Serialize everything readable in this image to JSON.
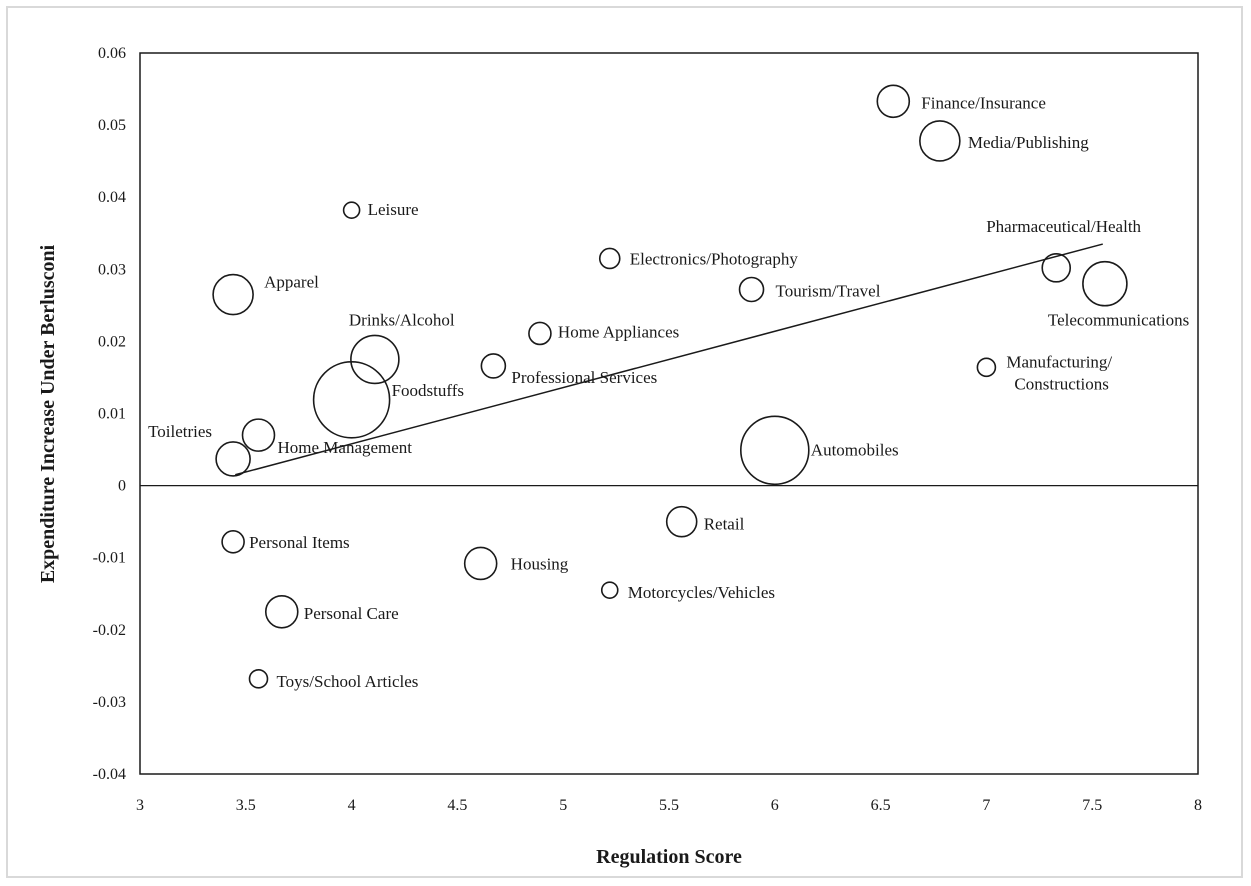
{
  "chart_data": {
    "type": "scatter",
    "subtype": "bubble",
    "title": "",
    "xlabel": "Regulation Score",
    "ylabel": "Expenditure Increase Under Berlusconi",
    "xlim": [
      3,
      8
    ],
    "ylim": [
      -0.04,
      0.06
    ],
    "xticks": [
      3,
      3.5,
      4,
      4.5,
      5,
      5.5,
      6,
      6.5,
      7,
      7.5,
      8
    ],
    "yticks": [
      -0.04,
      -0.03,
      -0.02,
      -0.01,
      0,
      0.01,
      0.02,
      0.03,
      0.04,
      0.05,
      0.06
    ],
    "xtick_labels": [
      "3",
      "3.5",
      "4",
      "4.5",
      "5",
      "5.5",
      "6",
      "6.5",
      "7",
      "7.5",
      "8"
    ],
    "ytick_labels": [
      "-0.04",
      "-0.03",
      "-0.02",
      "-0.01",
      "0",
      "0.01",
      "0.02",
      "0.03",
      "0.04",
      "0.05",
      "0.06"
    ],
    "grid": false,
    "trendline": {
      "x": [
        3.45,
        7.55
      ],
      "y": [
        0.0015,
        0.0335
      ]
    },
    "points": [
      {
        "label": "Finance/Insurance",
        "x": 6.56,
        "y": 0.0533,
        "size": 16
      },
      {
        "label": "Media/Publishing",
        "x": 6.78,
        "y": 0.0478,
        "size": 20
      },
      {
        "label": "Leisure",
        "x": 4.0,
        "y": 0.0382,
        "size": 8
      },
      {
        "label": "Electronics/Photography",
        "x": 5.22,
        "y": 0.0315,
        "size": 10
      },
      {
        "label": "Pharmaceutical/Health",
        "x": 7.33,
        "y": 0.0302,
        "size": 14
      },
      {
        "label": "Telecommunications",
        "x": 7.56,
        "y": 0.028,
        "size": 22
      },
      {
        "label": "Tourism/Travel",
        "x": 5.89,
        "y": 0.0272,
        "size": 12
      },
      {
        "label": "Apparel",
        "x": 3.44,
        "y": 0.0265,
        "size": 20
      },
      {
        "label": "Home Appliances",
        "x": 4.89,
        "y": 0.0211,
        "size": 11
      },
      {
        "label": "Drinks/Alcohol",
        "x": 4.11,
        "y": 0.0175,
        "size": 24
      },
      {
        "label": "Professional Services",
        "x": 4.67,
        "y": 0.0166,
        "size": 12
      },
      {
        "label": "Manufacturing/ Constructions",
        "x": 7.0,
        "y": 0.0164,
        "size": 9
      },
      {
        "label": "Foodstuffs",
        "x": 4.0,
        "y": 0.0119,
        "size": 38
      },
      {
        "label": "Home Management",
        "x": 3.56,
        "y": 0.007,
        "size": 16
      },
      {
        "label": "Toiletries",
        "x": 3.44,
        "y": 0.0037,
        "size": 17
      },
      {
        "label": "Automobiles",
        "x": 6.0,
        "y": 0.0049,
        "size": 34
      },
      {
        "label": "Retail",
        "x": 5.56,
        "y": -0.005,
        "size": 15
      },
      {
        "label": "Personal Items",
        "x": 3.44,
        "y": -0.0078,
        "size": 11
      },
      {
        "label": "Housing",
        "x": 4.61,
        "y": -0.0108,
        "size": 16
      },
      {
        "label": "Motorcycles/Vehicles",
        "x": 5.22,
        "y": -0.0145,
        "size": 8
      },
      {
        "label": "Personal Care",
        "x": 3.67,
        "y": -0.0175,
        "size": 16
      },
      {
        "label": "Toys/School Articles",
        "x": 3.56,
        "y": -0.0268,
        "size": 9
      }
    ]
  }
}
